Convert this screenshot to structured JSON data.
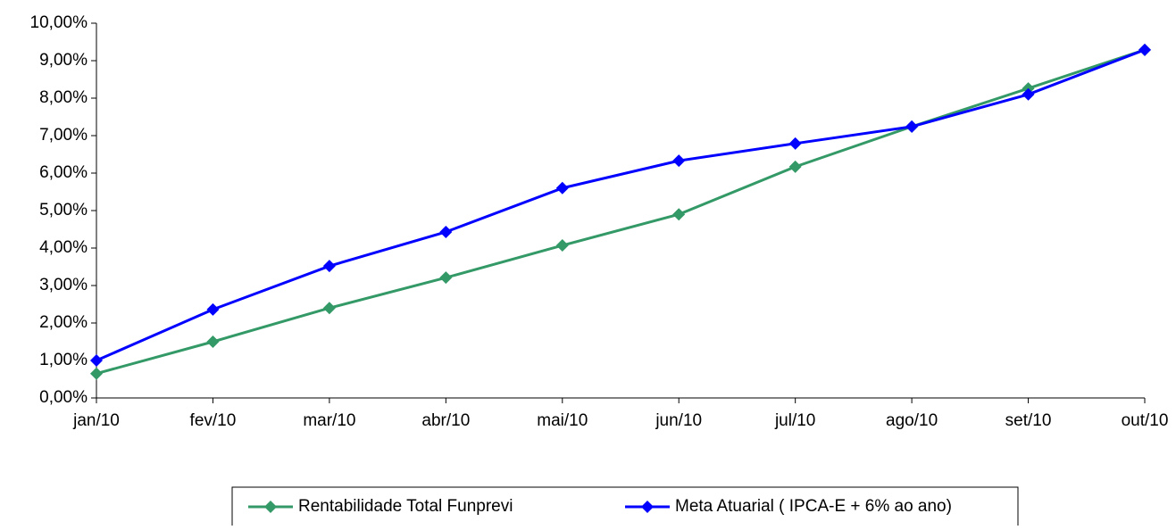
{
  "chart_data": {
    "type": "line",
    "categories": [
      "jan/10",
      "fev/10",
      "mar/10",
      "abr/10",
      "mai/10",
      "jun/10",
      "jul/10",
      "ago/10",
      "set/10",
      "out/10"
    ],
    "series": [
      {
        "name": "Rentabilidade Total Funprevi",
        "color": "#339966",
        "values": [
          0.65,
          1.5,
          2.4,
          3.21,
          4.07,
          4.9,
          6.17,
          7.24,
          8.26,
          9.29
        ]
      },
      {
        "name": "Meta Atuarial ( IPCA-E + 6% ao ano)",
        "color": "#0000ff",
        "values": [
          1.0,
          2.36,
          3.52,
          4.43,
          5.6,
          6.33,
          6.79,
          7.24,
          8.1,
          9.29
        ]
      }
    ],
    "ylim": [
      0,
      10
    ],
    "yticks": [
      {
        "value": 0,
        "label": "0,00%"
      },
      {
        "value": 1,
        "label": "1,00%"
      },
      {
        "value": 2,
        "label": "2,00%"
      },
      {
        "value": 3,
        "label": "3,00%"
      },
      {
        "value": 4,
        "label": "4,00%"
      },
      {
        "value": 5,
        "label": "5,00%"
      },
      {
        "value": 6,
        "label": "6,00%"
      },
      {
        "value": 7,
        "label": "7,00%"
      },
      {
        "value": 8,
        "label": "8,00%"
      },
      {
        "value": 9,
        "label": "9,00%"
      },
      {
        "value": 10,
        "label": "10,00%"
      }
    ],
    "grid": false,
    "legend": "bottom"
  }
}
